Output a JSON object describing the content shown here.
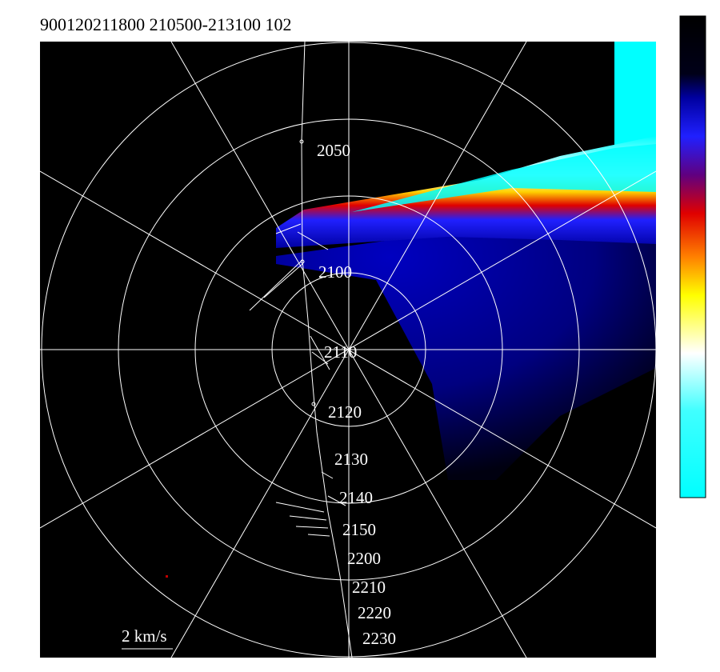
{
  "header": {
    "title": "900120211800 210500-213100 102"
  },
  "track": {
    "labels": [
      "2050",
      "2100",
      "2110",
      "2120",
      "2130",
      "2140",
      "2150",
      "2200",
      "2210",
      "2220",
      "2230"
    ]
  },
  "scale": {
    "label": "2 km/s"
  }
}
